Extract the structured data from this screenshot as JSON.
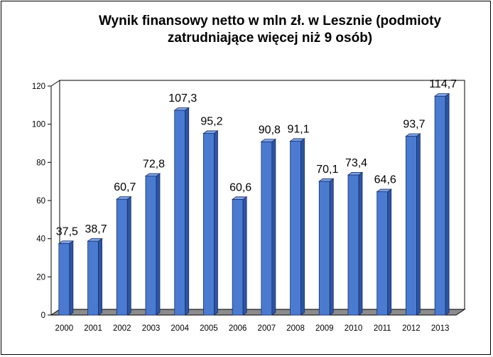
{
  "chart_data": {
    "type": "bar",
    "title": [
      "Wynik finansowy netto w mln zł. w Lesznie (podmioty",
      "zatrudniające więcej niż 9 osób)"
    ],
    "xlabel": "",
    "ylabel": "",
    "categories": [
      "2000",
      "2001",
      "2002",
      "2003",
      "2004",
      "2005",
      "2006",
      "2007",
      "2008",
      "2009",
      "2010",
      "2011",
      "2012",
      "2013"
    ],
    "values": [
      37.5,
      38.7,
      60.7,
      72.8,
      107.3,
      95.2,
      60.6,
      90.8,
      91.1,
      70.1,
      73.4,
      64.6,
      93.7,
      114.7
    ],
    "data_labels": [
      "37,5",
      "38,7",
      "60,7",
      "72,8",
      "107,3",
      "95,2",
      "60,6",
      "90,8",
      "91,1",
      "70,1",
      "73,4",
      "64,6",
      "93,7",
      "114,7"
    ],
    "ylim": [
      0,
      120
    ],
    "yticks": [
      0,
      20,
      40,
      60,
      80,
      100,
      120
    ],
    "ytick_labels": [
      "0",
      "20",
      "40",
      "60",
      "80",
      "100",
      "120"
    ],
    "grid": false,
    "legend": "none",
    "colors": {
      "bar_front": "#4a7bd0",
      "bar_side": "#2b55a6",
      "bar_top": "#7ea4e6",
      "floor": "#8c8c8c",
      "wall": "#ffffff"
    }
  }
}
